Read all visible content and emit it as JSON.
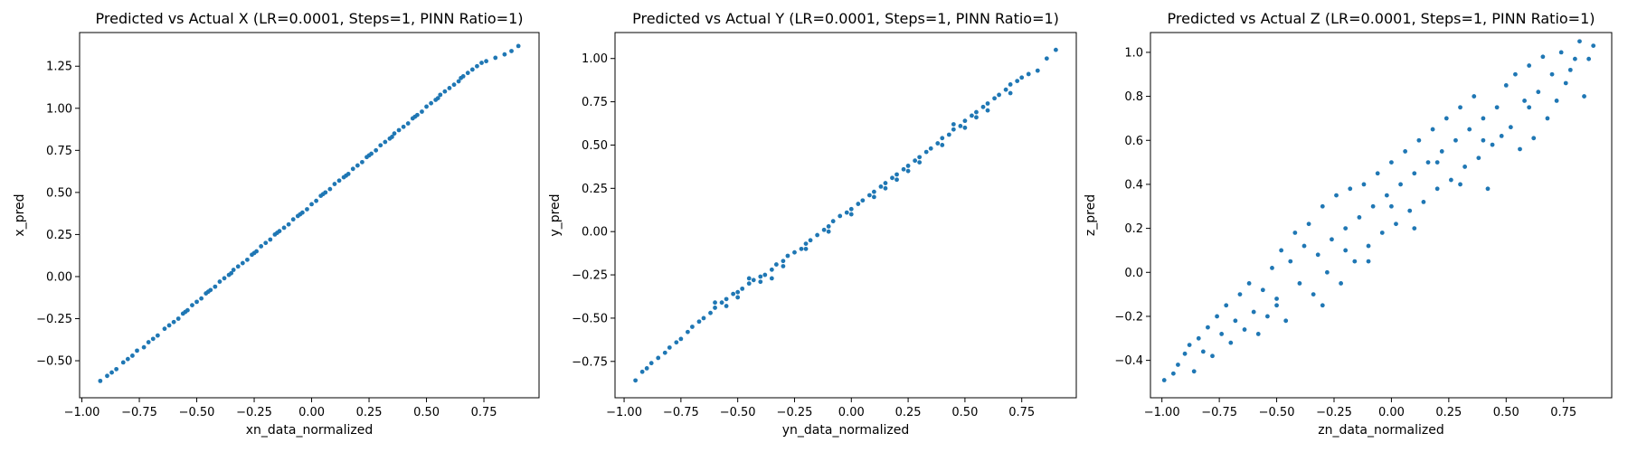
{
  "figure": {
    "background": "#ffffff"
  },
  "chart_data": [
    {
      "type": "scatter",
      "title": "Predicted vs Actual X (LR=0.0001, Steps=1, PINN Ratio=1)",
      "xlabel": "xn_data_normalized",
      "ylabel": "x_pred",
      "xlim": [
        -1.01,
        0.99
      ],
      "ylim": [
        -0.72,
        1.45
      ],
      "xticks": [
        -1.0,
        -0.75,
        -0.5,
        -0.25,
        0.0,
        0.25,
        0.5,
        0.75
      ],
      "xtick_labels": [
        "−1.00",
        "−0.75",
        "−0.50",
        "−0.25",
        "0.00",
        "0.25",
        "0.50",
        "0.75"
      ],
      "yticks": [
        -0.5,
        -0.25,
        0.0,
        0.25,
        0.5,
        0.75,
        1.0,
        1.25
      ],
      "ytick_labels": [
        "−0.50",
        "−0.25",
        "0.00",
        "0.25",
        "0.50",
        "0.75",
        "1.00",
        "1.25"
      ],
      "color": "#1f77b4",
      "grid": false,
      "points": [
        [
          -0.92,
          -0.62
        ],
        [
          -0.89,
          -0.59
        ],
        [
          -0.87,
          -0.57
        ],
        [
          -0.85,
          -0.55
        ],
        [
          -0.82,
          -0.51
        ],
        [
          -0.8,
          -0.49
        ],
        [
          -0.78,
          -0.47
        ],
        [
          -0.76,
          -0.44
        ],
        [
          -0.73,
          -0.42
        ],
        [
          -0.71,
          -0.39
        ],
        [
          -0.69,
          -0.37
        ],
        [
          -0.67,
          -0.35
        ],
        [
          -0.64,
          -0.31
        ],
        [
          -0.62,
          -0.29
        ],
        [
          -0.6,
          -0.27
        ],
        [
          -0.58,
          -0.25
        ],
        [
          -0.56,
          -0.22
        ],
        [
          -0.54,
          -0.2
        ],
        [
          -0.52,
          -0.17
        ],
        [
          -0.5,
          -0.15
        ],
        [
          -0.48,
          -0.13
        ],
        [
          -0.46,
          -0.1
        ],
        [
          -0.44,
          -0.08
        ],
        [
          -0.42,
          -0.06
        ],
        [
          -0.4,
          -0.03
        ],
        [
          -0.38,
          -0.01
        ],
        [
          -0.36,
          0.01
        ],
        [
          -0.34,
          0.04
        ],
        [
          -0.32,
          0.06
        ],
        [
          -0.3,
          0.08
        ],
        [
          -0.28,
          0.1
        ],
        [
          -0.26,
          0.13
        ],
        [
          -0.24,
          0.15
        ],
        [
          -0.22,
          0.18
        ],
        [
          -0.2,
          0.2
        ],
        [
          -0.18,
          0.22
        ],
        [
          -0.16,
          0.25
        ],
        [
          -0.14,
          0.27
        ],
        [
          -0.12,
          0.29
        ],
        [
          -0.1,
          0.31
        ],
        [
          -0.08,
          0.34
        ],
        [
          -0.06,
          0.36
        ],
        [
          -0.04,
          0.38
        ],
        [
          -0.02,
          0.4
        ],
        [
          0.0,
          0.43
        ],
        [
          0.02,
          0.45
        ],
        [
          0.04,
          0.48
        ],
        [
          0.06,
          0.5
        ],
        [
          0.08,
          0.52
        ],
        [
          0.1,
          0.55
        ],
        [
          0.12,
          0.57
        ],
        [
          0.14,
          0.59
        ],
        [
          0.16,
          0.61
        ],
        [
          0.18,
          0.64
        ],
        [
          0.2,
          0.66
        ],
        [
          0.22,
          0.68
        ],
        [
          0.24,
          0.71
        ],
        [
          0.26,
          0.73
        ],
        [
          0.28,
          0.75
        ],
        [
          0.3,
          0.78
        ],
        [
          0.32,
          0.8
        ],
        [
          0.34,
          0.82
        ],
        [
          0.36,
          0.85
        ],
        [
          0.38,
          0.87
        ],
        [
          0.4,
          0.89
        ],
        [
          0.42,
          0.91
        ],
        [
          0.44,
          0.94
        ],
        [
          0.46,
          0.96
        ],
        [
          0.48,
          0.98
        ],
        [
          0.5,
          1.01
        ],
        [
          0.52,
          1.03
        ],
        [
          0.54,
          1.05
        ],
        [
          0.56,
          1.08
        ],
        [
          0.58,
          1.1
        ],
        [
          0.6,
          1.12
        ],
        [
          0.62,
          1.14
        ],
        [
          0.64,
          1.16
        ],
        [
          0.66,
          1.19
        ],
        [
          0.68,
          1.21
        ],
        [
          0.7,
          1.23
        ],
        [
          0.72,
          1.25
        ],
        [
          0.74,
          1.27
        ],
        [
          0.76,
          1.28
        ],
        [
          0.8,
          1.3
        ],
        [
          0.84,
          1.32
        ],
        [
          0.87,
          1.34
        ],
        [
          0.9,
          1.37
        ],
        [
          -0.55,
          -0.21
        ],
        [
          -0.45,
          -0.09
        ],
        [
          -0.35,
          0.02
        ],
        [
          -0.25,
          0.14
        ],
        [
          -0.15,
          0.26
        ],
        [
          -0.05,
          0.37
        ],
        [
          0.05,
          0.49
        ],
        [
          0.15,
          0.6
        ],
        [
          0.25,
          0.72
        ],
        [
          0.35,
          0.83
        ],
        [
          0.45,
          0.95
        ],
        [
          0.55,
          1.06
        ],
        [
          0.65,
          1.18
        ]
      ]
    },
    {
      "type": "scatter",
      "title": "Predicted vs Actual Y (LR=0.0001, Steps=1, PINN Ratio=1)",
      "xlabel": "yn_data_normalized",
      "ylabel": "y_pred",
      "xlim": [
        -1.04,
        0.99
      ],
      "ylim": [
        -0.96,
        1.15
      ],
      "xticks": [
        -1.0,
        -0.75,
        -0.5,
        -0.25,
        0.0,
        0.25,
        0.5,
        0.75
      ],
      "xtick_labels": [
        "−1.00",
        "−0.75",
        "−0.50",
        "−0.25",
        "0.00",
        "0.25",
        "0.50",
        "0.75"
      ],
      "yticks": [
        -0.75,
        -0.5,
        -0.25,
        0.0,
        0.25,
        0.5,
        0.75,
        1.0
      ],
      "ytick_labels": [
        "−0.75",
        "−0.50",
        "−0.25",
        "0.00",
        "0.25",
        "0.50",
        "0.75",
        "1.00"
      ],
      "color": "#1f77b4",
      "grid": false,
      "points": [
        [
          -0.95,
          -0.86
        ],
        [
          -0.92,
          -0.81
        ],
        [
          -0.9,
          -0.79
        ],
        [
          -0.88,
          -0.76
        ],
        [
          -0.85,
          -0.73
        ],
        [
          -0.82,
          -0.7
        ],
        [
          -0.8,
          -0.67
        ],
        [
          -0.77,
          -0.64
        ],
        [
          -0.75,
          -0.62
        ],
        [
          -0.72,
          -0.58
        ],
        [
          -0.7,
          -0.55
        ],
        [
          -0.67,
          -0.52
        ],
        [
          -0.65,
          -0.5
        ],
        [
          -0.62,
          -0.47
        ],
        [
          -0.6,
          -0.44
        ],
        [
          -0.57,
          -0.41
        ],
        [
          -0.55,
          -0.39
        ],
        [
          -0.52,
          -0.36
        ],
        [
          -0.5,
          -0.35
        ],
        [
          -0.48,
          -0.33
        ],
        [
          -0.45,
          -0.3
        ],
        [
          -0.43,
          -0.28
        ],
        [
          -0.4,
          -0.26
        ],
        [
          -0.38,
          -0.25
        ],
        [
          -0.35,
          -0.22
        ],
        [
          -0.33,
          -0.19
        ],
        [
          -0.3,
          -0.17
        ],
        [
          -0.28,
          -0.14
        ],
        [
          -0.25,
          -0.12
        ],
        [
          -0.22,
          -0.1
        ],
        [
          -0.2,
          -0.07
        ],
        [
          -0.18,
          -0.05
        ],
        [
          -0.15,
          -0.02
        ],
        [
          -0.12,
          0.01
        ],
        [
          -0.1,
          0.03
        ],
        [
          -0.08,
          0.06
        ],
        [
          -0.05,
          0.09
        ],
        [
          -0.02,
          0.11
        ],
        [
          0.0,
          0.13
        ],
        [
          0.03,
          0.16
        ],
        [
          0.05,
          0.18
        ],
        [
          0.08,
          0.21
        ],
        [
          0.1,
          0.23
        ],
        [
          0.13,
          0.26
        ],
        [
          0.15,
          0.28
        ],
        [
          0.18,
          0.31
        ],
        [
          0.2,
          0.33
        ],
        [
          0.23,
          0.36
        ],
        [
          0.25,
          0.38
        ],
        [
          0.28,
          0.41
        ],
        [
          0.3,
          0.43
        ],
        [
          0.33,
          0.46
        ],
        [
          0.35,
          0.48
        ],
        [
          0.38,
          0.51
        ],
        [
          0.4,
          0.54
        ],
        [
          0.43,
          0.56
        ],
        [
          0.45,
          0.59
        ],
        [
          0.48,
          0.61
        ],
        [
          0.5,
          0.64
        ],
        [
          0.53,
          0.67
        ],
        [
          0.55,
          0.69
        ],
        [
          0.58,
          0.72
        ],
        [
          0.6,
          0.74
        ],
        [
          0.63,
          0.77
        ],
        [
          0.65,
          0.79
        ],
        [
          0.68,
          0.82
        ],
        [
          0.7,
          0.85
        ],
        [
          0.73,
          0.87
        ],
        [
          0.75,
          0.89
        ],
        [
          0.78,
          0.91
        ],
        [
          0.82,
          0.93
        ],
        [
          0.86,
          1.0
        ],
        [
          0.9,
          1.05
        ],
        [
          -0.6,
          -0.41
        ],
        [
          -0.5,
          -0.38
        ],
        [
          -0.4,
          -0.29
        ],
        [
          -0.3,
          -0.2
        ],
        [
          -0.2,
          -0.1
        ],
        [
          -0.1,
          0.0
        ],
        [
          0.0,
          0.1
        ],
        [
          0.1,
          0.2
        ],
        [
          0.2,
          0.3
        ],
        [
          0.3,
          0.4
        ],
        [
          0.4,
          0.5
        ],
        [
          0.5,
          0.6
        ],
        [
          0.6,
          0.7
        ],
        [
          0.7,
          0.8
        ],
        [
          -0.55,
          -0.43
        ],
        [
          -0.35,
          -0.27
        ],
        [
          0.25,
          0.35
        ],
        [
          0.45,
          0.62
        ],
        [
          0.55,
          0.66
        ],
        [
          -0.45,
          -0.27
        ],
        [
          0.15,
          0.25
        ]
      ]
    },
    {
      "type": "scatter",
      "title": "Predicted vs Actual Z (LR=0.0001, Steps=1, PINN Ratio=1)",
      "xlabel": "zn_data_normalized",
      "ylabel": "z_pred",
      "xlim": [
        -1.05,
        0.96
      ],
      "ylim": [
        -0.57,
        1.09
      ],
      "xticks": [
        -1.0,
        -0.75,
        -0.5,
        -0.25,
        0.0,
        0.25,
        0.5,
        0.75
      ],
      "xtick_labels": [
        "−1.00",
        "−0.75",
        "−0.50",
        "−0.25",
        "0.00",
        "0.25",
        "0.50",
        "0.75"
      ],
      "yticks": [
        -0.4,
        -0.2,
        0.0,
        0.2,
        0.4,
        0.6,
        0.8,
        1.0
      ],
      "ytick_labels": [
        "−0.4",
        "−0.2",
        "0.0",
        "0.2",
        "0.4",
        "0.6",
        "0.8",
        "1.0"
      ],
      "color": "#1f77b4",
      "grid": false,
      "points": [
        [
          -0.99,
          -0.49
        ],
        [
          -0.95,
          -0.46
        ],
        [
          -0.93,
          -0.42
        ],
        [
          -0.9,
          -0.37
        ],
        [
          -0.88,
          -0.33
        ],
        [
          -0.86,
          -0.45
        ],
        [
          -0.84,
          -0.3
        ],
        [
          -0.82,
          -0.36
        ],
        [
          -0.8,
          -0.25
        ],
        [
          -0.78,
          -0.38
        ],
        [
          -0.76,
          -0.2
        ],
        [
          -0.74,
          -0.28
        ],
        [
          -0.72,
          -0.15
        ],
        [
          -0.7,
          -0.32
        ],
        [
          -0.68,
          -0.22
        ],
        [
          -0.66,
          -0.1
        ],
        [
          -0.64,
          -0.26
        ],
        [
          -0.62,
          -0.05
        ],
        [
          -0.6,
          -0.18
        ],
        [
          -0.58,
          -0.28
        ],
        [
          -0.56,
          -0.08
        ],
        [
          -0.54,
          -0.2
        ],
        [
          -0.52,
          0.02
        ],
        [
          -0.5,
          -0.12
        ],
        [
          -0.48,
          0.1
        ],
        [
          -0.46,
          -0.22
        ],
        [
          -0.44,
          0.05
        ],
        [
          -0.42,
          0.18
        ],
        [
          -0.4,
          -0.05
        ],
        [
          -0.38,
          0.12
        ],
        [
          -0.36,
          0.22
        ],
        [
          -0.34,
          -0.1
        ],
        [
          -0.32,
          0.08
        ],
        [
          -0.3,
          0.3
        ],
        [
          -0.28,
          0.0
        ],
        [
          -0.26,
          0.15
        ],
        [
          -0.24,
          0.35
        ],
        [
          -0.22,
          -0.05
        ],
        [
          -0.2,
          0.2
        ],
        [
          -0.18,
          0.38
        ],
        [
          -0.16,
          0.05
        ],
        [
          -0.14,
          0.25
        ],
        [
          -0.12,
          0.4
        ],
        [
          -0.1,
          0.12
        ],
        [
          -0.08,
          0.3
        ],
        [
          -0.06,
          0.45
        ],
        [
          -0.04,
          0.18
        ],
        [
          -0.02,
          0.35
        ],
        [
          0.0,
          0.5
        ],
        [
          0.02,
          0.22
        ],
        [
          0.04,
          0.4
        ],
        [
          0.06,
          0.55
        ],
        [
          0.08,
          0.28
        ],
        [
          0.1,
          0.45
        ],
        [
          0.12,
          0.6
        ],
        [
          0.14,
          0.32
        ],
        [
          0.16,
          0.5
        ],
        [
          0.18,
          0.65
        ],
        [
          0.2,
          0.38
        ],
        [
          0.22,
          0.55
        ],
        [
          0.24,
          0.7
        ],
        [
          0.26,
          0.42
        ],
        [
          0.28,
          0.6
        ],
        [
          0.3,
          0.75
        ],
        [
          0.32,
          0.48
        ],
        [
          0.34,
          0.65
        ],
        [
          0.36,
          0.8
        ],
        [
          0.38,
          0.52
        ],
        [
          0.4,
          0.7
        ],
        [
          0.42,
          0.38
        ],
        [
          0.44,
          0.58
        ],
        [
          0.46,
          0.75
        ],
        [
          0.48,
          0.62
        ],
        [
          0.5,
          0.85
        ],
        [
          0.52,
          0.66
        ],
        [
          0.54,
          0.9
        ],
        [
          0.56,
          0.56
        ],
        [
          0.58,
          0.78
        ],
        [
          0.6,
          0.94
        ],
        [
          0.62,
          0.61
        ],
        [
          0.64,
          0.82
        ],
        [
          0.66,
          0.98
        ],
        [
          0.68,
          0.7
        ],
        [
          0.7,
          0.9
        ],
        [
          0.72,
          0.78
        ],
        [
          0.74,
          1.0
        ],
        [
          0.76,
          0.86
        ],
        [
          0.78,
          0.92
        ],
        [
          0.8,
          0.97
        ],
        [
          0.82,
          1.05
        ],
        [
          0.84,
          0.8
        ],
        [
          0.86,
          0.97
        ],
        [
          0.88,
          1.03
        ],
        [
          -0.3,
          -0.15
        ],
        [
          -0.1,
          0.05
        ],
        [
          0.1,
          0.2
        ],
        [
          0.3,
          0.4
        ],
        [
          -0.5,
          -0.15
        ],
        [
          0.0,
          0.3
        ],
        [
          0.2,
          0.5
        ],
        [
          -0.2,
          0.1
        ],
        [
          0.4,
          0.6
        ],
        [
          0.6,
          0.75
        ]
      ]
    }
  ]
}
